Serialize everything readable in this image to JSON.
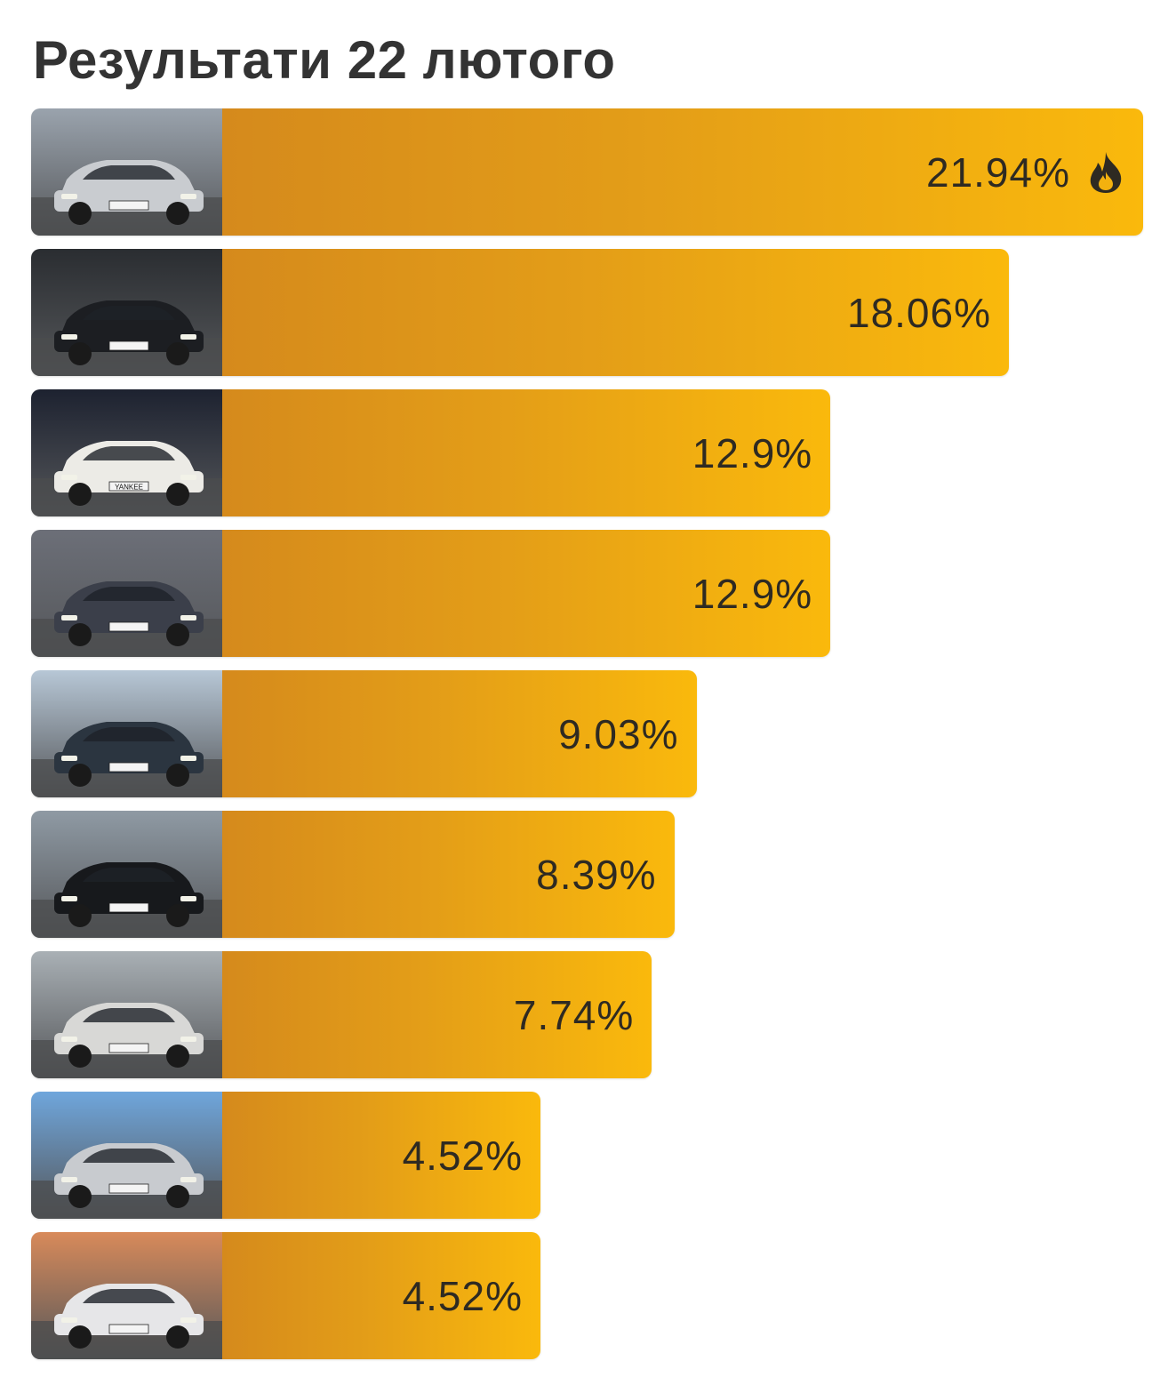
{
  "title": "Результати 22 лютого",
  "chart_data": {
    "type": "bar",
    "orientation": "horizontal",
    "categories": [
      "",
      "",
      "",
      "",
      "",
      "",
      "",
      "",
      ""
    ],
    "values": [
      21.94,
      18.06,
      12.9,
      12.9,
      9.03,
      8.39,
      7.74,
      4.52,
      4.52
    ],
    "labels": [
      "21.94%",
      "18.06%",
      "12.9%",
      "12.9%",
      "9.03%",
      "8.39%",
      "7.74%",
      "4.52%",
      "4.52%"
    ],
    "xlim": [
      0,
      21.94
    ],
    "title": "Результати 22 лютого",
    "xlabel": "",
    "ylabel": "",
    "grid": false,
    "legend": "none",
    "bar_gradient": [
      "#d58a1c",
      "#fab90c"
    ],
    "leader_icon": "fire-icon"
  },
  "thumbnails": [
    {
      "icon": "car-photo-icon",
      "plate": "",
      "sky": "#9aa3ad",
      "car": "#c9ccd0"
    },
    {
      "icon": "car-photo-icon",
      "plate": "",
      "sky": "#2a2d31",
      "car": "#1c1e22"
    },
    {
      "icon": "car-photo-icon",
      "plate": "YANKEE",
      "sky": "#1d2230",
      "car": "#ecebe6"
    },
    {
      "icon": "car-photo-icon",
      "plate": "",
      "sky": "#6c6f78",
      "car": "#3b3f4a"
    },
    {
      "icon": "car-photo-icon",
      "plate": "",
      "sky": "#b7c7d6",
      "car": "#2b3540"
    },
    {
      "icon": "car-photo-icon",
      "plate": "",
      "sky": "#8f9aa4",
      "car": "#17191c"
    },
    {
      "icon": "car-photo-icon",
      "plate": "",
      "sky": "#a9b0b5",
      "car": "#d8d8d6"
    },
    {
      "icon": "car-photo-icon",
      "plate": "",
      "sky": "#6fa6dc",
      "car": "#c8cbcf"
    },
    {
      "icon": "car-photo-icon",
      "plate": "",
      "sky": "#d88a5a",
      "car": "#e6e6e8"
    }
  ]
}
